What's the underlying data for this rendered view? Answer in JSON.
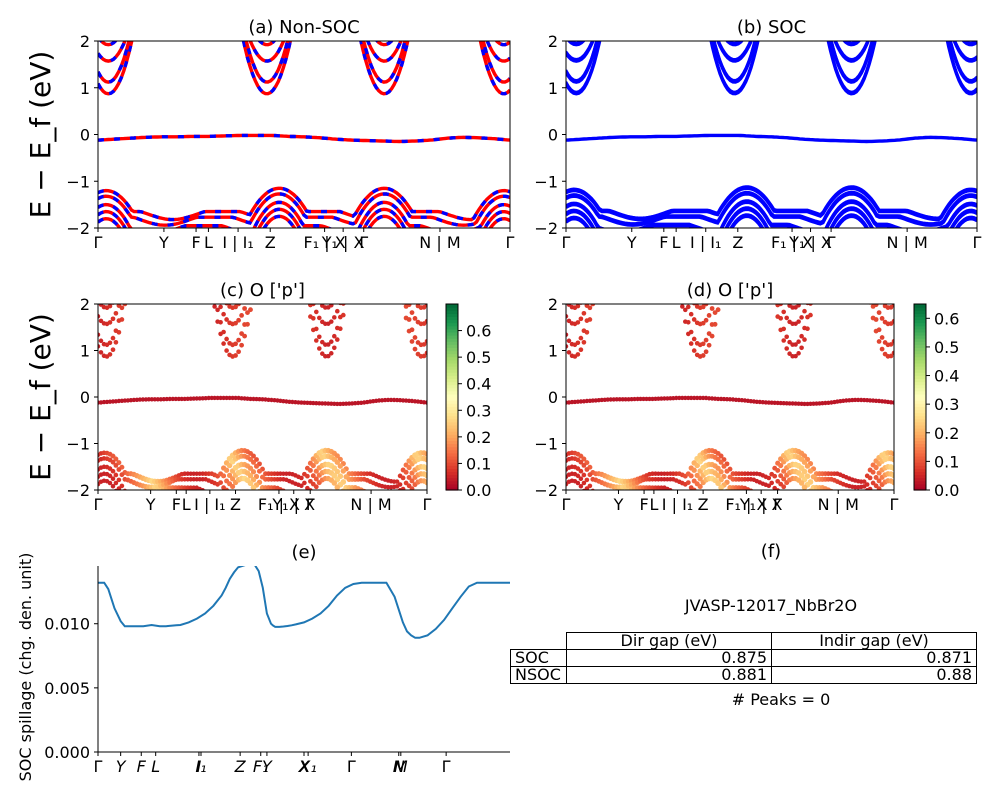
{
  "chart_data": [
    {
      "type": "line",
      "title": "(a) Non-SOC",
      "ylabel": "E − E_f (eV)",
      "ylim": [
        -2,
        2
      ],
      "yticks": [
        "2",
        "1",
        "0",
        "−1",
        "−2"
      ],
      "xticks": [
        "Γ",
        "Y",
        "F",
        "L",
        "I | I₁",
        "Z",
        "F₁ | X",
        "Y₁ | X",
        "Γ",
        "N | M",
        "Γ"
      ],
      "series": [
        {
          "color": "#ff0000",
          "style": "solid"
        },
        {
          "color": "#0000ff",
          "style": "dashed"
        }
      ],
      "bands": {
        "flat_band_ev": [
          -0.12,
          -0.1,
          -0.08,
          -0.06,
          -0.05,
          -0.05,
          -0.04,
          -0.04,
          -0.03,
          -0.02,
          -0.02,
          -0.02,
          -0.04,
          -0.05,
          -0.07,
          -0.1,
          -0.12,
          -0.13,
          -0.14,
          -0.15,
          -0.14,
          -0.12,
          -0.08,
          -0.06,
          -0.07,
          -0.09,
          -0.12
        ],
        "conduction_minima_ev": [
          0.87,
          0.87,
          0.87,
          0.87
        ],
        "valence_maxima_ev": [
          -1.2,
          -1.25,
          -1.1,
          -1.15
        ]
      }
    },
    {
      "type": "line",
      "title": "(b) SOC",
      "ylim": [
        -2,
        2
      ],
      "yticks": [
        "2",
        "1",
        "0",
        "−1",
        "−2"
      ],
      "xticks": [
        "Γ",
        "Y",
        "F",
        "L",
        "I | I₁",
        "Z",
        "F₁ | X",
        "Y₁ | X",
        "Γ",
        "N | M",
        "Γ"
      ],
      "series": [
        {
          "color": "#0000ff",
          "style": "solid"
        }
      ]
    },
    {
      "type": "scatter",
      "title": "(c)  O ['p']",
      "ylabel": "E − E_f (eV)",
      "ylim": [
        -2,
        2
      ],
      "yticks": [
        "2",
        "1",
        "0",
        "−1",
        "−2"
      ],
      "xticks": [
        "Γ",
        "Y",
        "F",
        "L",
        "I | I₁",
        "Z",
        "F₁ | X",
        "Y₁ | X",
        "Γ",
        "N | M",
        "Γ"
      ],
      "colormap": "RdYlGn",
      "colorbar_range": [
        0.0,
        0.7
      ],
      "colorbar_ticks": [
        "0.0",
        "0.1",
        "0.2",
        "0.3",
        "0.4",
        "0.5",
        "0.6"
      ]
    },
    {
      "type": "scatter",
      "title": "(d) O ['p']",
      "ylim": [
        -2,
        2
      ],
      "yticks": [
        "2",
        "1",
        "0",
        "−1",
        "−2"
      ],
      "xticks": [
        "Γ",
        "Y",
        "F",
        "L",
        "I | I₁",
        "Z",
        "F₁ | X",
        "Y₁ | X",
        "Γ",
        "N | M",
        "Γ"
      ],
      "colormap": "RdYlGn",
      "colorbar_range": [
        0.0,
        0.65
      ],
      "colorbar_ticks": [
        "0.0",
        "0.1",
        "0.2",
        "0.3",
        "0.4",
        "0.5",
        "0.6"
      ]
    },
    {
      "type": "line",
      "title": "(e)",
      "ylabel": "SOC spillage (chg. den. unit)",
      "ylim": [
        0,
        0.0145
      ],
      "yticks": [
        "0.000",
        "0.005",
        "0.010"
      ],
      "xticks": [
        "Γ",
        "Y",
        "F",
        "L",
        "I",
        "I₁",
        "Z",
        "F₁",
        "Y",
        "X",
        "X₁",
        "Γ",
        "N",
        "M",
        "Γ"
      ],
      "series": [
        {
          "color": "#1f77b4",
          "x": [
            0,
            0.015,
            0.025,
            0.04,
            0.055,
            0.065,
            0.075,
            0.09,
            0.11,
            0.13,
            0.15,
            0.165,
            0.17,
            0.18,
            0.19,
            0.2,
            0.22,
            0.24,
            0.26,
            0.28,
            0.3,
            0.31,
            0.32,
            0.33,
            0.34,
            0.36,
            0.38,
            0.39,
            0.4,
            0.41,
            0.42,
            0.425,
            0.43,
            0.44,
            0.45,
            0.46,
            0.47,
            0.48,
            0.5,
            0.52,
            0.54,
            0.56,
            0.58,
            0.6,
            0.62,
            0.64,
            0.66,
            0.68,
            0.7,
            0.72,
            0.74,
            0.75,
            0.76,
            0.77,
            0.78,
            0.8,
            0.82,
            0.84,
            0.86,
            0.88,
            0.9,
            0.92,
            0.935,
            0.95,
            0.97,
            1.0
          ],
          "y": [
            0.0132,
            0.0132,
            0.0127,
            0.0112,
            0.0102,
            0.0098,
            0.0098,
            0.0098,
            0.0098,
            0.0099,
            0.0098,
            0.0098,
            0.00982,
            0.00985,
            0.00988,
            0.0099,
            0.0101,
            0.0104,
            0.0108,
            0.0114,
            0.0122,
            0.0128,
            0.0135,
            0.014,
            0.0144,
            0.0146,
            0.0146,
            0.0141,
            0.0128,
            0.0108,
            0.01,
            0.00985,
            0.00975,
            0.00975,
            0.00978,
            0.00982,
            0.00988,
            0.00995,
            0.0101,
            0.0104,
            0.0108,
            0.0114,
            0.0122,
            0.0128,
            0.0131,
            0.0132,
            0.0132,
            0.0132,
            0.0132,
            0.0121,
            0.0101,
            0.0094,
            0.0091,
            0.0089,
            0.0089,
            0.0091,
            0.0096,
            0.0103,
            0.0112,
            0.0121,
            0.0129,
            0.0132,
            0.0132,
            0.0132,
            0.0132,
            0.0132
          ]
        }
      ]
    }
  ],
  "panel_f": {
    "title": "(f)",
    "material": "JVASP-12017_NbBr2O",
    "table": {
      "columns": [
        "Dir gap (eV)",
        "Indir gap (eV)"
      ],
      "rows": [
        {
          "label": "SOC",
          "dir": "0.875",
          "indir": "0.871"
        },
        {
          "label": "NSOC",
          "dir": "0.881",
          "indir": "0.88"
        }
      ]
    },
    "peaks": "# Peaks = 0"
  }
}
